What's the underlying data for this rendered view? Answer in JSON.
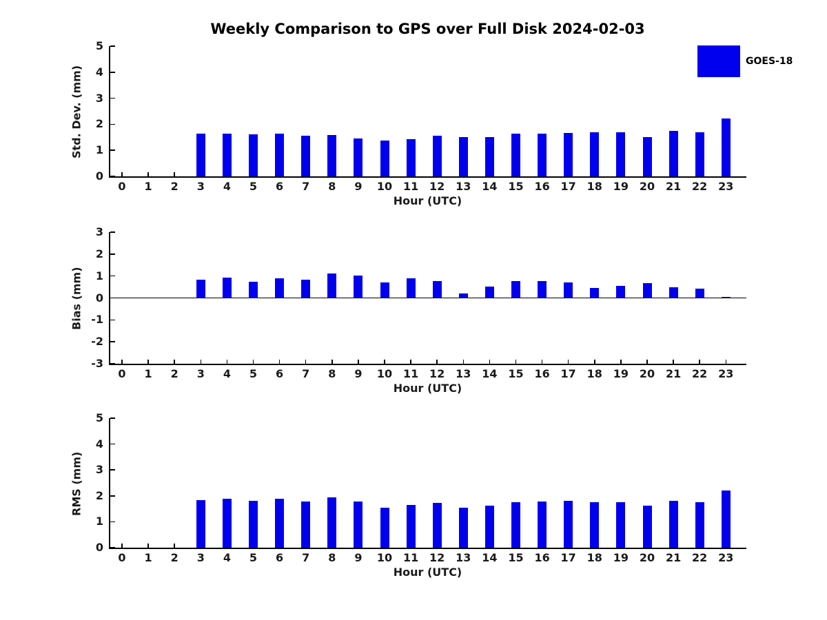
{
  "title": "Weekly Comparison to GPS over Full Disk 2024-02-03",
  "legend": {
    "label": "GOES-18",
    "color": "#0000ee"
  },
  "colors": {
    "bar": "#0000ee",
    "axis": "#000000"
  },
  "chart_data": [
    {
      "type": "bar",
      "name": "std-dev",
      "title": "Weekly Comparison to GPS over Full Disk 2024-02-03",
      "ylabel": "Std. Dev. (mm)",
      "xlabel": "Hour (UTC)",
      "legend_entry": "GOES-18",
      "ylim": [
        0,
        5
      ],
      "yticks": [
        0,
        1,
        2,
        3,
        4,
        5
      ],
      "categories": [
        "0",
        "1",
        "2",
        "3",
        "4",
        "5",
        "6",
        "7",
        "8",
        "9",
        "10",
        "11",
        "12",
        "13",
        "14",
        "15",
        "16",
        "17",
        "18",
        "19",
        "20",
        "21",
        "22",
        "23"
      ],
      "values": [
        0,
        0,
        0,
        1.65,
        1.65,
        1.62,
        1.65,
        1.57,
        1.6,
        1.45,
        1.38,
        1.43,
        1.57,
        1.5,
        1.51,
        1.63,
        1.65,
        1.67,
        1.7,
        1.68,
        1.5,
        1.75,
        1.7,
        2.22
      ]
    },
    {
      "type": "bar",
      "name": "bias",
      "ylabel": "Bias (mm)",
      "xlabel": "Hour (UTC)",
      "legend_entry": "GOES-18",
      "ylim": [
        -3,
        3
      ],
      "yticks": [
        -3,
        -2,
        -1,
        0,
        1,
        2,
        3
      ],
      "zero_line": true,
      "categories": [
        "0",
        "1",
        "2",
        "3",
        "4",
        "5",
        "6",
        "7",
        "8",
        "9",
        "10",
        "11",
        "12",
        "13",
        "14",
        "15",
        "16",
        "17",
        "18",
        "19",
        "20",
        "21",
        "22",
        "23"
      ],
      "values": [
        0,
        0,
        0,
        0.82,
        0.93,
        0.75,
        0.91,
        0.82,
        1.1,
        1.03,
        0.71,
        0.89,
        0.77,
        0.2,
        0.52,
        0.77,
        0.76,
        0.72,
        0.45,
        0.56,
        0.69,
        0.5,
        0.41,
        0.05
      ]
    },
    {
      "type": "bar",
      "name": "rms",
      "ylabel": "RMS (mm)",
      "xlabel": "Hour (UTC)",
      "legend_entry": "GOES-18",
      "ylim": [
        0,
        5
      ],
      "yticks": [
        0,
        1,
        2,
        3,
        4,
        5
      ],
      "categories": [
        "0",
        "1",
        "2",
        "3",
        "4",
        "5",
        "6",
        "7",
        "8",
        "9",
        "10",
        "11",
        "12",
        "13",
        "14",
        "15",
        "16",
        "17",
        "18",
        "19",
        "20",
        "21",
        "22",
        "23"
      ],
      "values": [
        0,
        0,
        0,
        1.84,
        1.9,
        1.8,
        1.9,
        1.77,
        1.93,
        1.77,
        1.55,
        1.66,
        1.74,
        1.53,
        1.61,
        1.76,
        1.79,
        1.82,
        1.76,
        1.76,
        1.63,
        1.82,
        1.76,
        2.21
      ]
    }
  ]
}
